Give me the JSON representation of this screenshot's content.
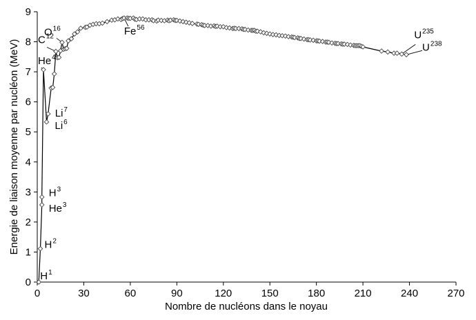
{
  "chart_data": {
    "type": "line",
    "title": "",
    "xlabel": "Nombre de nucléons dans le noyau",
    "ylabel": "Energie de liaison moyenne par nucléon (MeV)",
    "xlim": [
      0,
      270
    ],
    "ylim": [
      0,
      9
    ],
    "x_ticks": [
      "0",
      "30",
      "60",
      "90",
      "120",
      "150",
      "180",
      "210",
      "240",
      "270"
    ],
    "y_ticks": [
      "0",
      "1",
      "2",
      "3",
      "4",
      "5",
      "6",
      "7",
      "8",
      "9"
    ],
    "grid": false,
    "legend": "none",
    "series": [
      {
        "marker": "diamond-open",
        "points": [
          [
            1,
            0
          ],
          [
            2,
            1.11
          ],
          [
            3,
            2.57
          ],
          [
            3,
            2.83
          ],
          [
            4,
            7.07
          ],
          [
            6,
            5.33
          ],
          [
            7,
            5.6
          ],
          [
            9,
            6.46
          ],
          [
            10,
            6.48
          ],
          [
            11,
            6.93
          ],
          [
            12,
            7.68
          ],
          [
            13,
            7.47
          ],
          [
            14,
            7.48
          ],
          [
            15,
            7.7
          ],
          [
            16,
            7.98
          ],
          [
            17,
            7.75
          ],
          [
            18,
            7.77
          ],
          [
            19,
            7.78
          ],
          [
            20,
            8.03
          ],
          [
            22,
            8.1
          ],
          [
            24,
            8.26
          ],
          [
            26,
            8.33
          ],
          [
            28,
            8.45
          ],
          [
            31,
            8.48
          ],
          [
            32,
            8.49
          ],
          [
            34,
            8.55
          ],
          [
            36,
            8.58
          ],
          [
            38,
            8.6
          ],
          [
            40,
            8.6
          ],
          [
            42,
            8.62
          ],
          [
            45,
            8.67
          ],
          [
            48,
            8.72
          ],
          [
            50,
            8.73
          ],
          [
            52,
            8.76
          ],
          [
            54,
            8.74
          ],
          [
            55,
            8.77
          ],
          [
            56,
            8.79
          ],
          [
            58,
            8.79
          ],
          [
            59,
            8.78
          ],
          [
            60,
            8.78
          ],
          [
            62,
            8.79
          ],
          [
            63,
            8.75
          ],
          [
            64,
            8.74
          ],
          [
            66,
            8.76
          ],
          [
            68,
            8.76
          ],
          [
            70,
            8.73
          ],
          [
            72,
            8.73
          ],
          [
            74,
            8.73
          ],
          [
            75,
            8.7
          ],
          [
            77,
            8.69
          ],
          [
            78,
            8.72
          ],
          [
            80,
            8.71
          ],
          [
            82,
            8.7
          ],
          [
            84,
            8.72
          ],
          [
            85,
            8.7
          ],
          [
            86,
            8.72
          ],
          [
            88,
            8.73
          ],
          [
            89,
            8.71
          ],
          [
            90,
            8.71
          ],
          [
            92,
            8.69
          ],
          [
            94,
            8.67
          ],
          [
            96,
            8.65
          ],
          [
            98,
            8.63
          ],
          [
            100,
            8.61
          ],
          [
            103,
            8.59
          ],
          [
            104,
            8.58
          ],
          [
            106,
            8.57
          ],
          [
            107,
            8.55
          ],
          [
            108,
            8.54
          ],
          [
            110,
            8.54
          ],
          [
            112,
            8.52
          ],
          [
            114,
            8.53
          ],
          [
            115,
            8.51
          ],
          [
            116,
            8.52
          ],
          [
            118,
            8.5
          ],
          [
            120,
            8.5
          ],
          [
            122,
            8.47
          ],
          [
            124,
            8.46
          ],
          [
            126,
            8.44
          ],
          [
            127,
            8.45
          ],
          [
            128,
            8.44
          ],
          [
            130,
            8.44
          ],
          [
            132,
            8.43
          ],
          [
            133,
            8.41
          ],
          [
            134,
            8.41
          ],
          [
            136,
            8.39
          ],
          [
            138,
            8.38
          ],
          [
            139,
            8.38
          ],
          [
            140,
            8.38
          ],
          [
            141,
            8.35
          ],
          [
            142,
            8.35
          ],
          [
            144,
            8.33
          ],
          [
            146,
            8.3
          ],
          [
            148,
            8.28
          ],
          [
            150,
            8.26
          ],
          [
            152,
            8.24
          ],
          [
            154,
            8.23
          ],
          [
            156,
            8.21
          ],
          [
            158,
            8.2
          ],
          [
            160,
            8.19
          ],
          [
            162,
            8.17
          ],
          [
            164,
            8.16
          ],
          [
            165,
            8.15
          ],
          [
            166,
            8.14
          ],
          [
            168,
            8.13
          ],
          [
            169,
            8.11
          ],
          [
            170,
            8.11
          ],
          [
            172,
            8.09
          ],
          [
            174,
            8.07
          ],
          [
            175,
            8.07
          ],
          [
            176,
            8.06
          ],
          [
            178,
            8.05
          ],
          [
            180,
            8.03
          ],
          [
            181,
            8.03
          ],
          [
            182,
            8.02
          ],
          [
            184,
            8.01
          ],
          [
            186,
            7.99
          ],
          [
            187,
            7.99
          ],
          [
            188,
            7.98
          ],
          [
            190,
            7.96
          ],
          [
            192,
            7.95
          ],
          [
            193,
            7.94
          ],
          [
            194,
            7.94
          ],
          [
            196,
            7.93
          ],
          [
            197,
            7.92
          ],
          [
            198,
            7.92
          ],
          [
            200,
            7.91
          ],
          [
            202,
            7.89
          ],
          [
            204,
            7.88
          ],
          [
            205,
            7.87
          ],
          [
            206,
            7.87
          ],
          [
            207,
            7.87
          ],
          [
            208,
            7.87
          ],
          [
            209,
            7.85
          ],
          [
            210,
            7.83
          ],
          [
            222,
            7.69
          ],
          [
            226,
            7.66
          ],
          [
            230,
            7.62
          ],
          [
            232,
            7.62
          ],
          [
            235,
            7.59
          ],
          [
            238,
            7.57
          ]
        ]
      }
    ],
    "annotations": [
      {
        "element": "H",
        "mass": "1",
        "x": 1,
        "y": 0
      },
      {
        "element": "H",
        "mass": "2",
        "x": 2,
        "y": 1.11
      },
      {
        "element": "H",
        "mass": "3",
        "x": 3,
        "y": 2.83
      },
      {
        "element": "He",
        "mass": "3",
        "x": 3,
        "y": 2.57
      },
      {
        "element": "He",
        "mass": "4",
        "x": 4,
        "y": 7.07
      },
      {
        "element": "Li",
        "mass": "7",
        "x": 7,
        "y": 5.6
      },
      {
        "element": "Li",
        "mass": "6",
        "x": 6,
        "y": 5.33
      },
      {
        "element": "C",
        "mass": "12",
        "x": 12,
        "y": 7.68
      },
      {
        "element": "O",
        "mass": "16",
        "x": 16,
        "y": 7.98
      },
      {
        "element": "Fe",
        "mass": "56",
        "x": 56,
        "y": 8.79
      },
      {
        "element": "U",
        "mass": "235",
        "x": 235,
        "y": 7.59
      },
      {
        "element": "U",
        "mass": "238",
        "x": 238,
        "y": 7.57
      }
    ]
  }
}
